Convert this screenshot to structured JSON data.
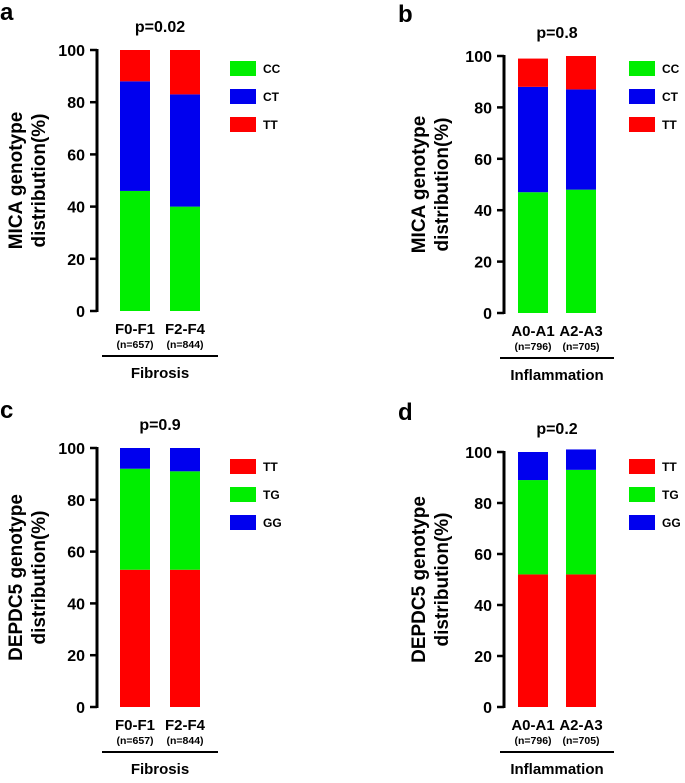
{
  "chart_data": [
    {
      "panel": "a",
      "type": "bar",
      "stacked": true,
      "title": "p=0.02",
      "ylabel": "MICA genotype distribution(%)",
      "xlabel": "Fibrosis",
      "ylim": [
        0,
        100
      ],
      "yticks": [
        0,
        20,
        40,
        60,
        80,
        100
      ],
      "categories": [
        "F0-F1",
        "F2-F4"
      ],
      "subcategories": [
        "(n=657)",
        "(n=844)"
      ],
      "series": [
        {
          "name": "CC",
          "color": "#00ee00",
          "values": [
            46,
            40
          ]
        },
        {
          "name": "CT",
          "color": "#0000ee",
          "values": [
            42,
            43
          ]
        },
        {
          "name": "TT",
          "color": "#ff0000",
          "values": [
            12,
            17
          ]
        }
      ],
      "legend": "right"
    },
    {
      "panel": "b",
      "type": "bar",
      "stacked": true,
      "title": "p=0.8",
      "ylabel": "MICA genotype distribution(%)",
      "xlabel": "Inflammation",
      "ylim": [
        0,
        100
      ],
      "yticks": [
        0,
        20,
        40,
        60,
        80,
        100
      ],
      "categories": [
        "A0-A1",
        "A2-A3"
      ],
      "subcategories": [
        "(n=796)",
        "(n=705)"
      ],
      "series": [
        {
          "name": "CC",
          "color": "#00ee00",
          "values": [
            47,
            48
          ]
        },
        {
          "name": "CT",
          "color": "#0000ee",
          "values": [
            41,
            39
          ]
        },
        {
          "name": "TT",
          "color": "#ff0000",
          "values": [
            11,
            13
          ]
        }
      ],
      "legend": "right"
    },
    {
      "panel": "c",
      "type": "bar",
      "stacked": true,
      "title": "p=0.9",
      "ylabel": "DEPDC5 genotype distribution(%)",
      "xlabel": "Fibrosis",
      "ylim": [
        0,
        100
      ],
      "yticks": [
        0,
        20,
        40,
        60,
        80,
        100
      ],
      "categories": [
        "F0-F1",
        "F2-F4"
      ],
      "subcategories": [
        "(n=657)",
        "(n=844)"
      ],
      "series": [
        {
          "name": "TT",
          "color": "#ff0000",
          "values": [
            53,
            53
          ]
        },
        {
          "name": "TG",
          "color": "#00ee00",
          "values": [
            39,
            38
          ]
        },
        {
          "name": "GG",
          "color": "#0000ee",
          "values": [
            8,
            9
          ]
        }
      ],
      "legend": "right"
    },
    {
      "panel": "d",
      "type": "bar",
      "stacked": true,
      "title": "p=0.2",
      "ylabel": "DEPDC5 genotype distribution(%)",
      "xlabel": "Inflammation",
      "ylim": [
        0,
        100
      ],
      "yticks": [
        0,
        20,
        40,
        60,
        80,
        100
      ],
      "categories": [
        "A0-A1",
        "A2-A3"
      ],
      "subcategories": [
        "(n=796)",
        "(n=705)"
      ],
      "series": [
        {
          "name": "TT",
          "color": "#ff0000",
          "values": [
            52,
            52
          ]
        },
        {
          "name": "TG",
          "color": "#00ee00",
          "values": [
            37,
            41
          ]
        },
        {
          "name": "GG",
          "color": "#0000ee",
          "values": [
            11,
            8
          ]
        }
      ],
      "legend": "right"
    }
  ]
}
